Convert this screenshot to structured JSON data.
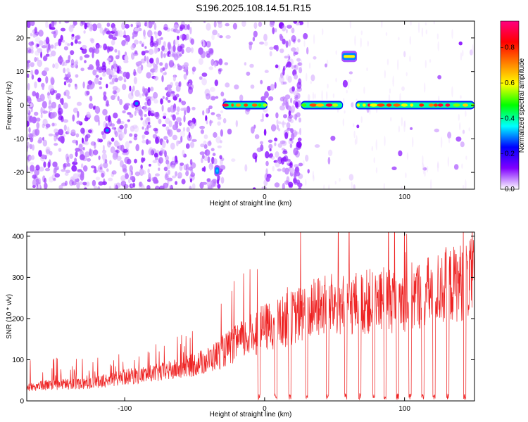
{
  "title": "S196.2025.108.14.51.R15",
  "chart_data": [
    {
      "type": "heatmap",
      "xlabel": "Height of straight line (km)",
      "ylabel": "Frequency (Hz)",
      "xlim": [
        -170,
        150
      ],
      "ylim": [
        -25,
        25
      ],
      "x_ticks": [
        -100,
        0,
        100
      ],
      "y_ticks": [
        -20,
        -10,
        0,
        10,
        20
      ],
      "grid": false,
      "colorbar": {
        "label": "Normalized spectral amplitude",
        "range": [
          0.0,
          0.95
        ],
        "ticks": [
          0.0,
          0.2,
          0.4,
          0.6,
          0.8
        ],
        "colors": [
          "#ffffff",
          "#8000ff",
          "#0000ff",
          "#00ffff",
          "#00ff00",
          "#ffff00",
          "#ff8000",
          "#ff0000",
          "#ff0080"
        ]
      },
      "features": [
        {
          "label": "carrier",
          "x_range": [
            -30,
            2
          ],
          "frequency": 0,
          "peak_amplitude": 0.9
        },
        {
          "label": "carrier",
          "x_range": [
            26,
            56
          ],
          "frequency": 0,
          "peak_amplitude": 0.9
        },
        {
          "label": "carrier",
          "x_range": [
            65,
            150
          ],
          "frequency": 0,
          "peak_amplitude": 0.9
        },
        {
          "label": "line",
          "x_range": [
            55,
            66
          ],
          "frequency": 14.5,
          "peak_amplitude": 0.6
        },
        {
          "label": "line",
          "x_range": [
            -36,
            -32
          ],
          "frequency": -19.5,
          "peak_amplitude": 0.35
        },
        {
          "label": "spot",
          "x_range": [
            -114,
            -111
          ],
          "frequency": -7.5,
          "peak_amplitude": 0.3
        },
        {
          "label": "spot",
          "x_range": [
            -93,
            -90
          ],
          "frequency": 0.5,
          "peak_amplitude": 0.3
        }
      ]
    },
    {
      "type": "line",
      "xlabel": "Height of straight line (km)",
      "ylabel": "SNR (10 * v/v)",
      "xlim": [
        -170,
        150
      ],
      "ylim": [
        0,
        410
      ],
      "x_ticks": [
        -100,
        0,
        100
      ],
      "y_ticks": [
        0,
        100,
        200,
        300,
        400
      ],
      "grid": false,
      "series": [
        {
          "color": "#ee2222",
          "envelope": [
            {
              "x": -170,
              "y": 40
            },
            {
              "x": -160,
              "y": 45
            },
            {
              "x": -140,
              "y": 50
            },
            {
              "x": -120,
              "y": 55
            },
            {
              "x": -100,
              "y": 70
            },
            {
              "x": -80,
              "y": 80
            },
            {
              "x": -60,
              "y": 95
            },
            {
              "x": -40,
              "y": 120
            },
            {
              "x": -20,
              "y": 170
            },
            {
              "x": 0,
              "y": 215
            },
            {
              "x": 20,
              "y": 245
            },
            {
              "x": 40,
              "y": 280
            },
            {
              "x": 60,
              "y": 285
            },
            {
              "x": 80,
              "y": 295
            },
            {
              "x": 100,
              "y": 300
            },
            {
              "x": 120,
              "y": 325
            },
            {
              "x": 140,
              "y": 350
            },
            {
              "x": 150,
              "y": 360
            }
          ],
          "dropouts_x": [
            -4,
            8,
            18,
            30,
            45,
            58,
            68,
            78,
            86,
            95,
            104,
            113,
            121,
            131,
            143
          ]
        }
      ]
    }
  ]
}
